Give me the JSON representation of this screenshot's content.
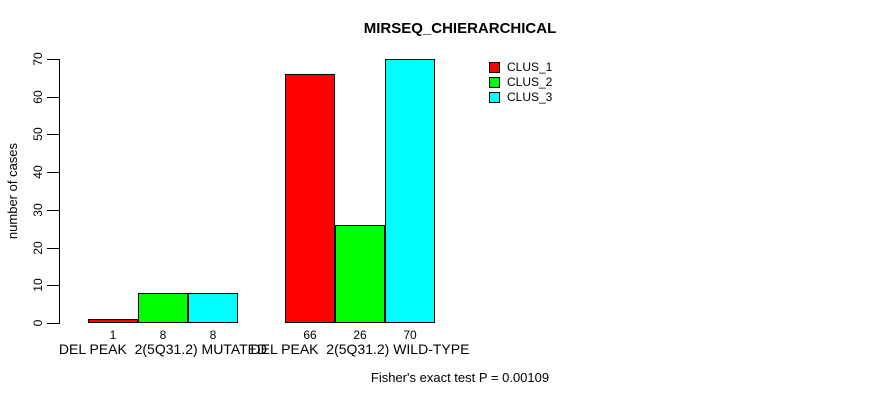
{
  "title": "MIRSEQ_CHIERARCHICAL",
  "footer": "Fisher's exact test P = 0.00109",
  "y_axis": {
    "label": "number of cases",
    "ticks": [
      0,
      10,
      20,
      30,
      40,
      50,
      60,
      70
    ]
  },
  "legend": {
    "entries": [
      {
        "label": "CLUS_1",
        "color": "#ff0000"
      },
      {
        "label": "CLUS_2",
        "color": "#00ff00"
      },
      {
        "label": "CLUS_3",
        "color": "#00ffff"
      }
    ]
  },
  "chart_data": {
    "type": "bar",
    "title": "MIRSEQ_CHIERARCHICAL",
    "categories": [
      "DEL PEAK  2(5Q31.2) MUTATED",
      "DEL PEAK  2(5Q31.2) WILD-TYPE"
    ],
    "series": [
      {
        "name": "CLUS_1",
        "color": "#ff0000",
        "values": [
          1,
          66
        ]
      },
      {
        "name": "CLUS_2",
        "color": "#00ff00",
        "values": [
          8,
          26
        ]
      },
      {
        "name": "CLUS_3",
        "color": "#00ffff",
        "values": [
          8,
          70
        ]
      }
    ],
    "bar_value_labels": [
      [
        1,
        8,
        8
      ],
      [
        66,
        26,
        70
      ]
    ],
    "xlabel": "",
    "ylabel": "number of cases",
    "ylim": [
      0,
      70
    ],
    "yticks": [
      0,
      10,
      20,
      30,
      40,
      50,
      60,
      70
    ],
    "grid": false,
    "legend_position": "top-right",
    "bar_border_color": "#000000",
    "background_color": "#ffffff",
    "annotation": "Fisher's exact test P = 0.00109"
  }
}
